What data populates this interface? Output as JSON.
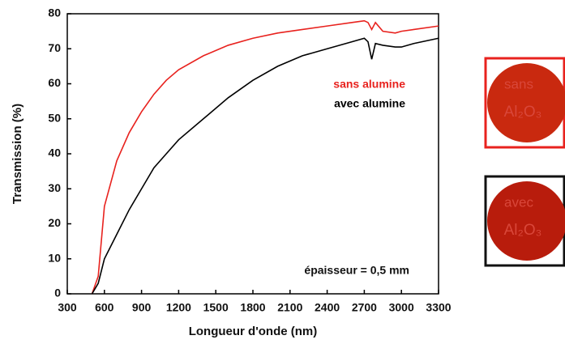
{
  "chart_data": {
    "type": "line",
    "xlabel": "Longueur d'onde (nm)",
    "ylabel": "Transmission (%)",
    "annotation": "épaisseur = 0,5 mm",
    "x": [
      500,
      550,
      600,
      700,
      800,
      900,
      1000,
      1100,
      1200,
      1400,
      1600,
      1800,
      2000,
      2200,
      2400,
      2600,
      2700,
      2730,
      2760,
      2790,
      2850,
      2950,
      3000,
      3100,
      3300
    ],
    "series": [
      {
        "name": "sans alumine",
        "color": "#e8221e",
        "values": [
          0,
          5,
          25,
          38,
          46,
          52,
          57,
          61,
          64,
          68,
          71,
          73,
          74.5,
          75.5,
          76.5,
          77.5,
          78,
          77.5,
          75.5,
          77.5,
          75,
          74.5,
          75,
          75.5,
          76.5
        ]
      },
      {
        "name": "avec alumine",
        "color": "#000000",
        "values": [
          0,
          3,
          10,
          17,
          24,
          30,
          36,
          40,
          44,
          50,
          56,
          61,
          65,
          68,
          70,
          72,
          73,
          72,
          67,
          71.5,
          71,
          70.5,
          70.5,
          71.5,
          73
        ]
      }
    ],
    "xlim": [
      300,
      3300
    ],
    "xticks": [
      300,
      600,
      900,
      1200,
      1500,
      1800,
      2100,
      2400,
      2700,
      3000,
      3300
    ],
    "ylim": [
      0,
      80
    ],
    "yticks": [
      0,
      10,
      20,
      30,
      40,
      50,
      60,
      70,
      80
    ]
  },
  "samples": [
    {
      "top": "sans",
      "bottom": "Al₂O₃",
      "border": "#e8221e"
    },
    {
      "top": "avec",
      "bottom": "Al₂O₃",
      "border": "#111111"
    }
  ]
}
